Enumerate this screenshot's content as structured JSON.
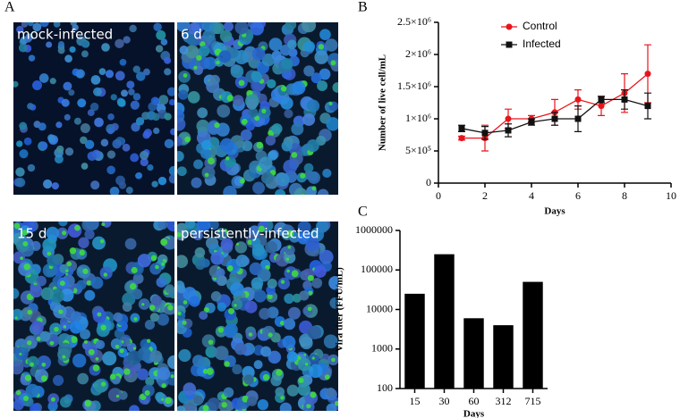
{
  "figure": {
    "panel_labels": [
      "A",
      "B",
      "C"
    ],
    "image_labels": [
      "mock-infected",
      "6 d",
      "15 d",
      "persistently-infected"
    ]
  },
  "chart_data": [
    {
      "type": "line",
      "x_label": "Days",
      "y_label": "Number of live cell/mL",
      "xlim": [
        0,
        10
      ],
      "xticks": [
        0,
        2,
        4,
        6,
        8,
        10
      ],
      "ylim": [
        0,
        2500000
      ],
      "yticks": [
        0,
        {
          "value": 500000,
          "label": "5×10⁵"
        },
        {
          "value": 1000000,
          "label": "1×10⁶"
        },
        {
          "value": 1500000,
          "label": "1.5×10⁶"
        },
        {
          "value": 2000000,
          "label": "2×10⁶"
        },
        {
          "value": 2500000,
          "label": "2.5×10⁶"
        }
      ],
      "legend": "upper center",
      "x": [
        1,
        2,
        3,
        4,
        5,
        6,
        7,
        8,
        9
      ],
      "series": [
        {
          "name": "Control",
          "color": "#e8141c",
          "marker": "circle",
          "values": [
            700000,
            700000,
            1000000,
            1000000,
            1100000,
            1300000,
            1200000,
            1400000,
            1700000
          ],
          "errors": [
            30000,
            200000,
            150000,
            50000,
            200000,
            150000,
            150000,
            300000,
            450000
          ]
        },
        {
          "name": "Infected",
          "color": "#111111",
          "marker": "square",
          "values": [
            850000,
            780000,
            820000,
            950000,
            1000000,
            1000000,
            1300000,
            1300000,
            1200000
          ],
          "errors": [
            50000,
            100000,
            100000,
            50000,
            100000,
            200000,
            50000,
            150000,
            200000
          ]
        }
      ]
    },
    {
      "type": "bar",
      "x_label": "Days",
      "y_label": "Vira titer (FFU/mL)",
      "log_scale": true,
      "color": "#000000",
      "categories": [
        "15",
        "30",
        "60",
        "312",
        "715"
      ],
      "values": [
        25000,
        250000,
        6000,
        4000,
        50000
      ],
      "ylim": [
        100,
        1000000
      ],
      "yticks": [
        100,
        1000,
        10000,
        100000,
        1000000
      ]
    }
  ]
}
